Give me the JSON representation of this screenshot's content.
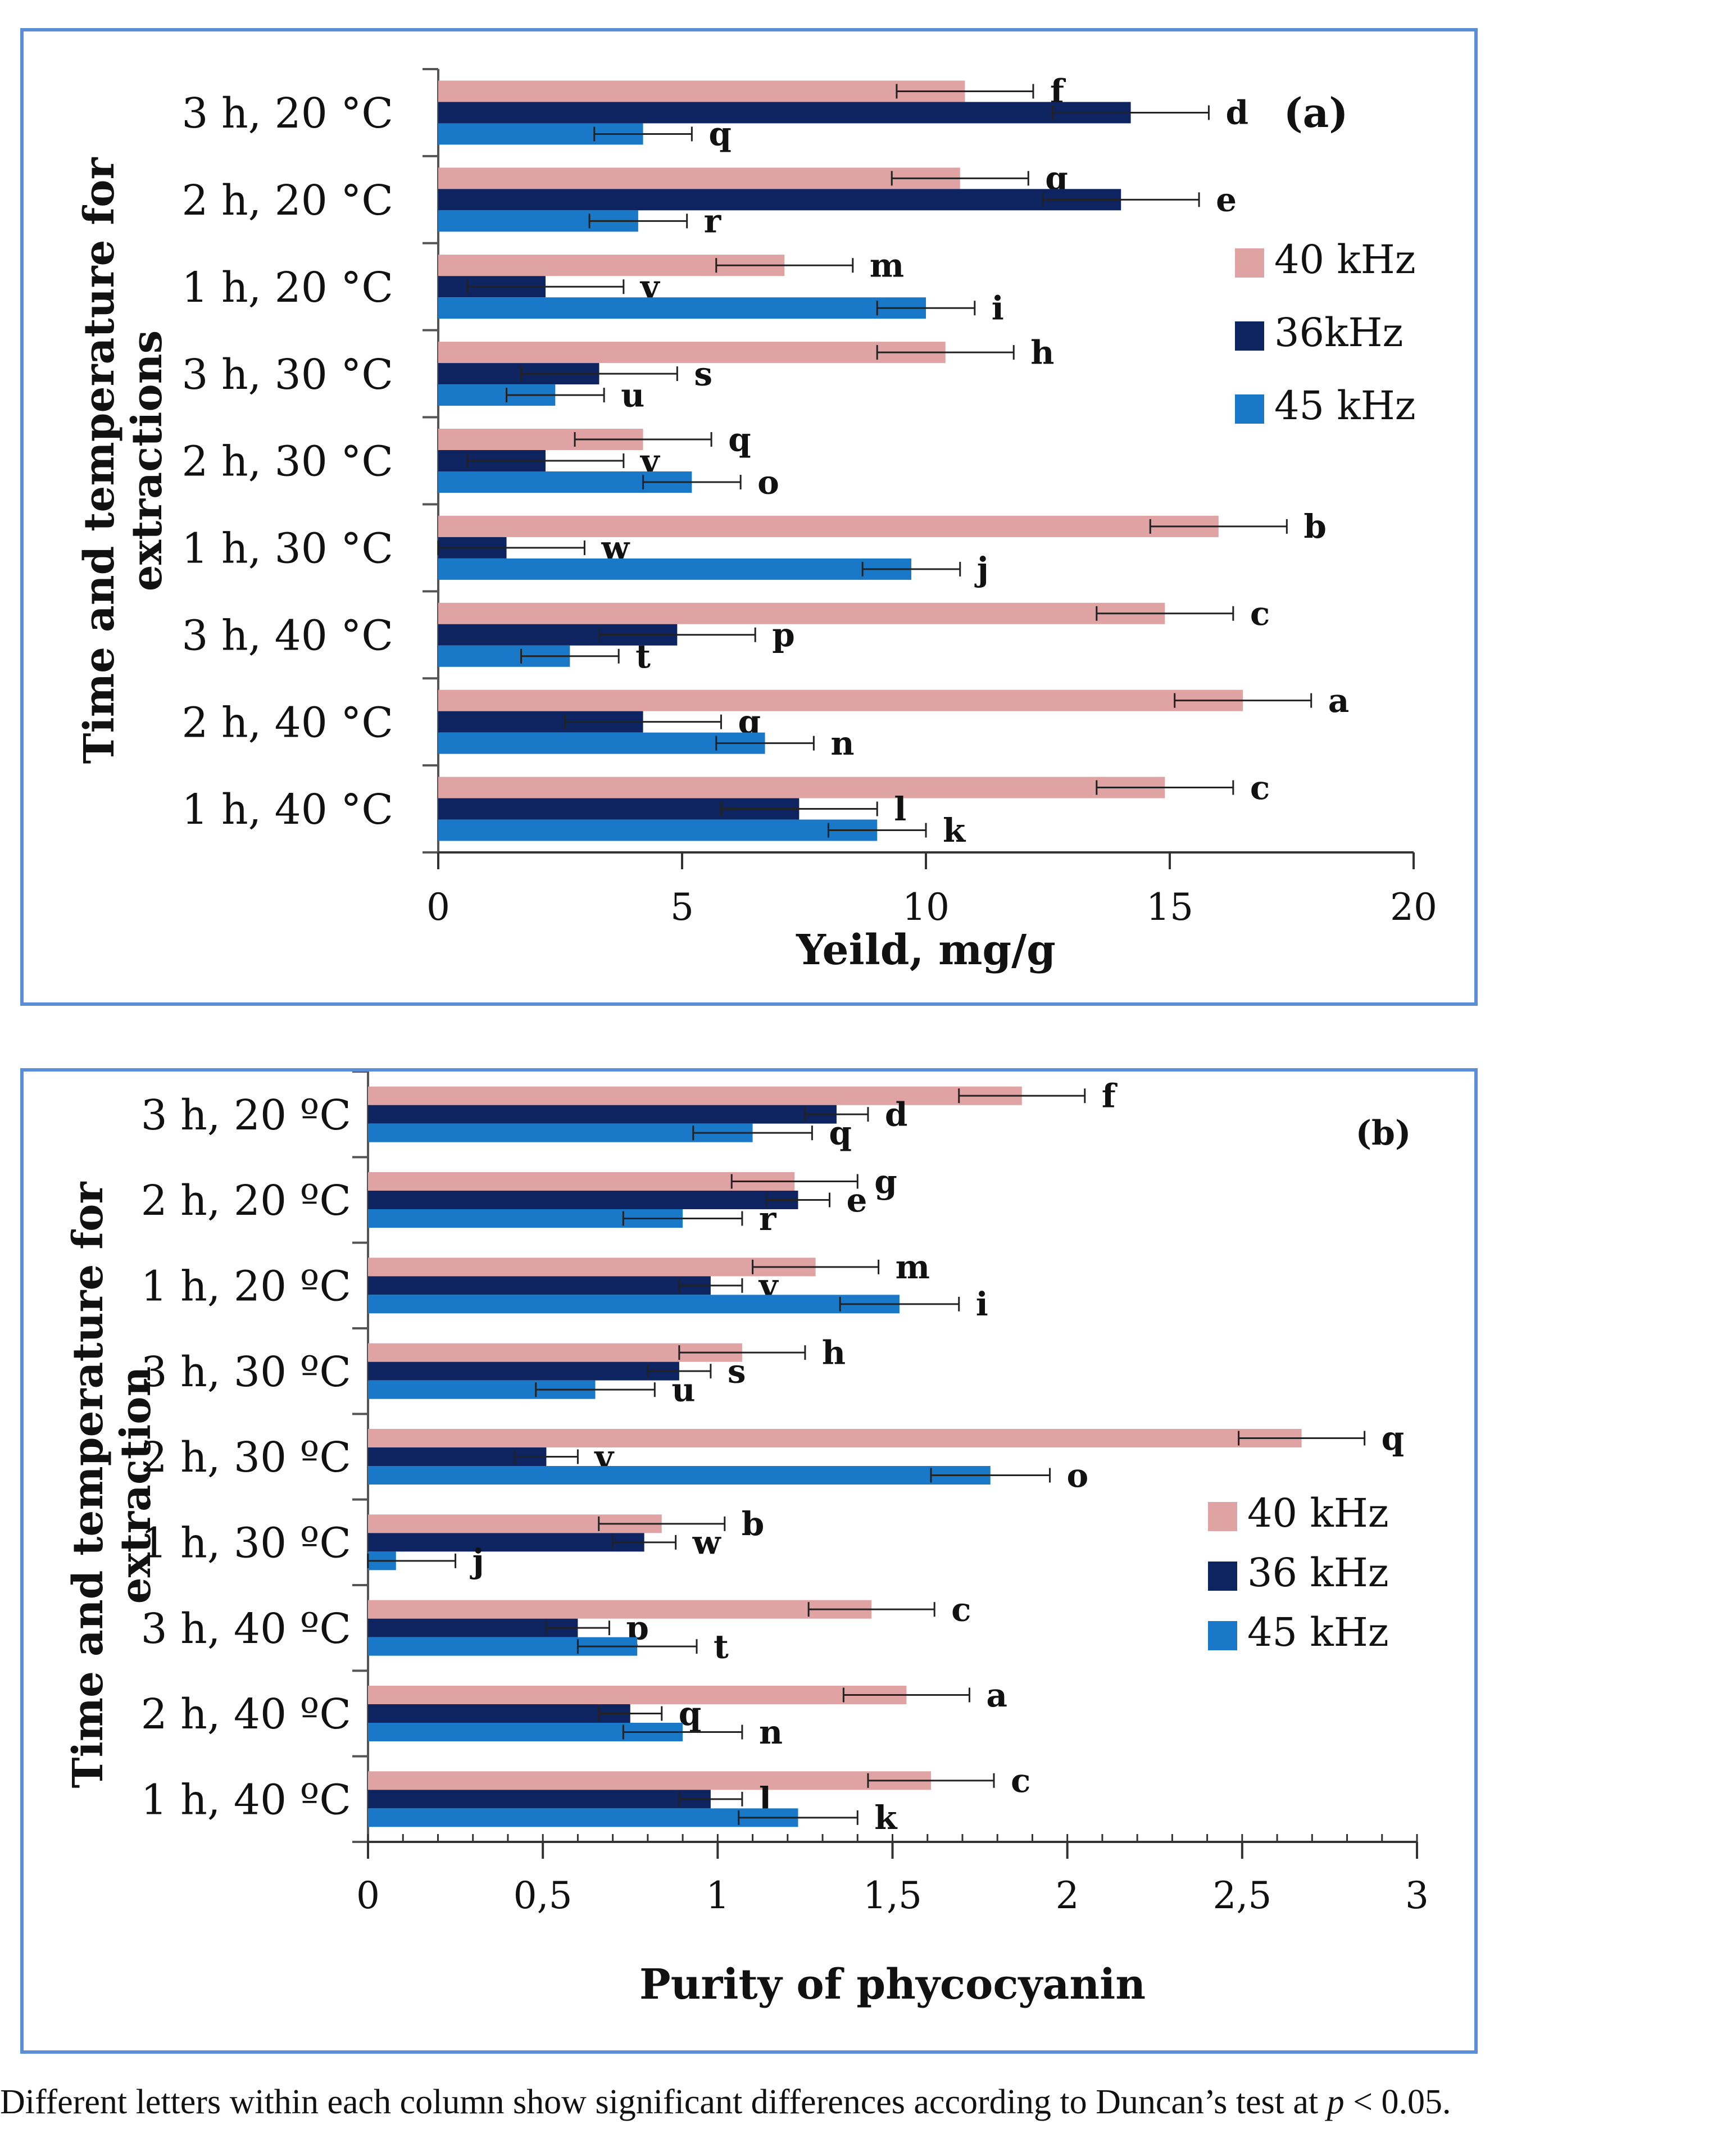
{
  "caption": {
    "text": "Different letters within each column show significant differences according to Duncan’s test at ",
    "p_symbol": "p",
    "tail": " < 0.05."
  },
  "series_colors": {
    "40 kHz": "#e0a3a3",
    "36kHz": "#0d2461",
    "45 kHz": "#1a78c8"
  },
  "chart_data": [
    {
      "panel_label": "(a)",
      "type": "bar",
      "orientation": "horizontal",
      "title": "",
      "xlabel": "Yeild, mg/g",
      "ylabel": "Time and temperature for extractions",
      "ylabel_lines": [
        "Time and temperature for",
        "extractions"
      ],
      "xlim": [
        0,
        20
      ],
      "xticks": [
        0,
        5,
        10,
        15,
        20
      ],
      "tick_labels": [
        "0",
        "5",
        "10",
        "15",
        "20"
      ],
      "grid": false,
      "legend_position": "right",
      "categories": [
        "3 h, 20 °C",
        "2 h, 20 °C",
        "1 h, 20 °C",
        "3 h, 30 °C",
        "2 h, 30 °C",
        "1 h, 30 °C",
        "3 h, 40 °C",
        "2 h, 40 °C",
        "1 h, 40 °C"
      ],
      "series": [
        {
          "name": "40 kHz",
          "values": [
            10.8,
            10.7,
            7.1,
            10.4,
            4.2,
            16.0,
            14.9,
            16.5,
            14.9
          ],
          "errors": [
            1.4,
            1.4,
            1.4,
            1.4,
            1.4,
            1.4,
            1.4,
            1.4,
            1.4
          ],
          "letters": [
            "f",
            "g",
            "m",
            "h",
            "q",
            "b",
            "c",
            "a",
            "c"
          ]
        },
        {
          "name": "36kHz",
          "values": [
            14.2,
            14.0,
            2.2,
            3.3,
            2.2,
            1.4,
            4.9,
            4.2,
            7.4
          ],
          "errors": [
            1.6,
            1.6,
            1.6,
            1.6,
            1.6,
            1.6,
            1.6,
            1.6,
            1.6
          ],
          "letters": [
            "d",
            "e",
            "v",
            "s",
            "v",
            "w",
            "p",
            "q",
            "l"
          ]
        },
        {
          "name": "45 kHz",
          "values": [
            4.2,
            4.1,
            10.0,
            2.4,
            5.2,
            9.7,
            2.7,
            6.7,
            9.0
          ],
          "errors": [
            1.0,
            1.0,
            1.0,
            1.0,
            1.0,
            1.0,
            1.0,
            1.0,
            1.0
          ],
          "letters": [
            "q",
            "r",
            "i",
            "u",
            "o",
            "j",
            "t",
            "n",
            "k"
          ]
        }
      ]
    },
    {
      "panel_label": "(b)",
      "type": "bar",
      "orientation": "horizontal",
      "title": "",
      "xlabel": "Purity of phycocyanin",
      "ylabel": "Time and temperature for extraction",
      "ylabel_lines": [
        "Time and temperature for",
        "extraction"
      ],
      "xlim": [
        0,
        3
      ],
      "xticks": [
        0,
        0.5,
        1,
        1.5,
        2,
        2.5,
        3
      ],
      "tick_labels": [
        "0",
        "0,5",
        "1",
        "1,5",
        "2",
        "2,5",
        "3"
      ],
      "grid": false,
      "legend_position": "right",
      "categories": [
        "3 h, 20 ºC",
        "2 h, 20 ºC",
        "1 h, 20 ºC",
        "3 h, 30 ºC",
        "2 h, 30 ºC",
        "1 h, 30 ºC",
        "3 h, 40 ºC",
        "2 h, 40 ºC",
        "1 h, 40 ºC"
      ],
      "series": [
        {
          "name": "40 kHz",
          "values": [
            1.87,
            1.22,
            1.28,
            1.07,
            2.67,
            0.84,
            1.44,
            1.54,
            1.61
          ],
          "errors": [
            0.18,
            0.18,
            0.18,
            0.18,
            0.18,
            0.18,
            0.18,
            0.18,
            0.18
          ],
          "letters": [
            "f",
            "g",
            "m",
            "h",
            "q",
            "b",
            "c",
            "a",
            "c"
          ]
        },
        {
          "name": "36 kHz",
          "values": [
            1.34,
            1.23,
            0.98,
            0.89,
            0.51,
            0.79,
            0.6,
            0.75,
            0.98
          ],
          "errors": [
            0.09,
            0.09,
            0.09,
            0.09,
            0.09,
            0.09,
            0.09,
            0.09,
            0.09
          ],
          "letters": [
            "d",
            "e",
            "v",
            "s",
            "v",
            "w",
            "p",
            "q",
            "l"
          ]
        },
        {
          "name": "45 kHz",
          "values": [
            1.1,
            0.9,
            1.52,
            0.65,
            1.78,
            0.08,
            0.77,
            0.9,
            1.23
          ],
          "errors": [
            0.17,
            0.17,
            0.17,
            0.17,
            0.17,
            0.17,
            0.17,
            0.17,
            0.17
          ],
          "letters": [
            "q",
            "r",
            "i",
            "u",
            "o",
            "j",
            "t",
            "n",
            "k"
          ]
        }
      ]
    }
  ]
}
